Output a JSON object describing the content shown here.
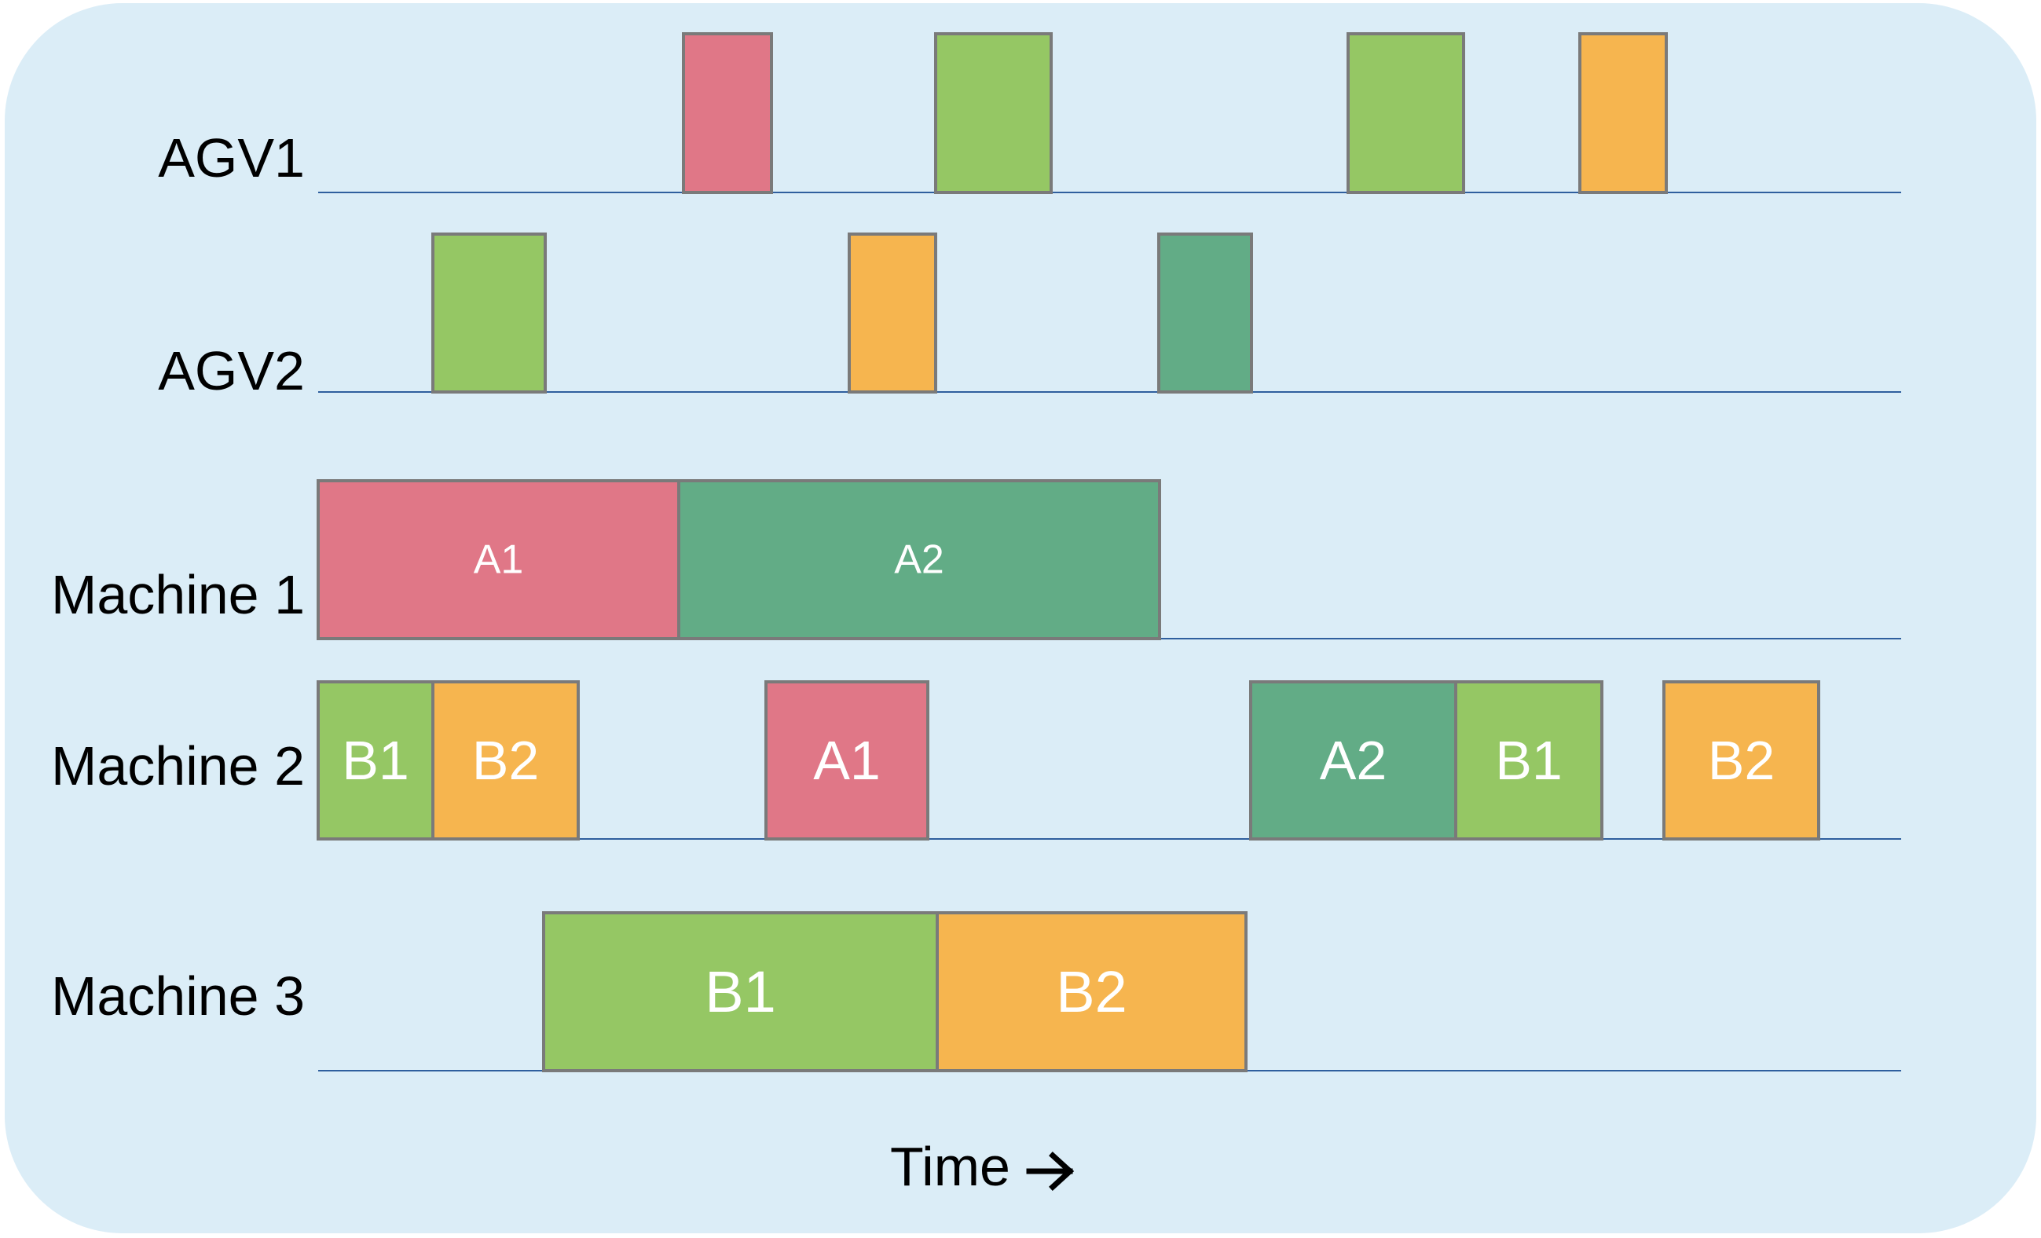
{
  "chart_data": {
    "type": "gantt",
    "x_label": "Time",
    "colors": {
      "A1": "#e07787",
      "A2": "#62ac86",
      "B1": "#95c764",
      "B2": "#f6b54f",
      "axis": "#2f5f9e",
      "border": "#7a7a7a",
      "panel": "#dbedf7"
    },
    "rows": [
      {
        "label": "AGV1",
        "tasks": [
          {
            "job": "A1",
            "start": 465,
            "end": 577,
            "labeled": false
          },
          {
            "job": "B1",
            "start": 786,
            "end": 933,
            "labeled": false
          },
          {
            "job": "B1",
            "start": 1311,
            "end": 1458,
            "labeled": false
          },
          {
            "job": "B2",
            "start": 1606,
            "end": 1716,
            "labeled": false
          }
        ]
      },
      {
        "label": "AGV2",
        "tasks": [
          {
            "job": "B1",
            "start": 146,
            "end": 289,
            "labeled": false
          },
          {
            "job": "B2",
            "start": 676,
            "end": 786,
            "labeled": false
          },
          {
            "job": "A2",
            "start": 1070,
            "end": 1188,
            "labeled": false
          }
        ]
      },
      {
        "label": "Machine 1",
        "tasks": [
          {
            "job": "A1",
            "start": 0,
            "end": 459,
            "labeled": true
          },
          {
            "job": "A2",
            "start": 459,
            "end": 1071,
            "labeled": true
          }
        ]
      },
      {
        "label": "Machine 2",
        "tasks": [
          {
            "job": "B1",
            "start": 0,
            "end": 146,
            "labeled": true
          },
          {
            "job": "B2",
            "start": 146,
            "end": 331,
            "labeled": true
          },
          {
            "job": "A1",
            "start": 570,
            "end": 776,
            "labeled": true
          },
          {
            "job": "A2",
            "start": 1187,
            "end": 1448,
            "labeled": true
          },
          {
            "job": "B1",
            "start": 1448,
            "end": 1634,
            "labeled": true
          },
          {
            "job": "B2",
            "start": 1713,
            "end": 1910,
            "labeled": true
          }
        ]
      },
      {
        "label": "Machine 3",
        "tasks": [
          {
            "job": "B1",
            "start": 287,
            "end": 788,
            "labeled": true
          },
          {
            "job": "B2",
            "start": 788,
            "end": 1181,
            "labeled": true
          }
        ]
      }
    ]
  }
}
